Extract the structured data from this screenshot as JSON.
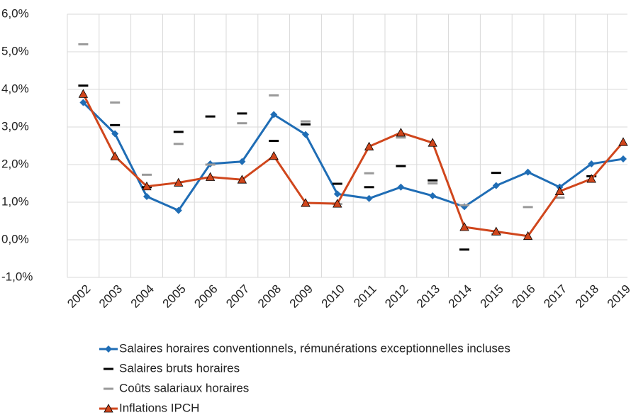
{
  "chart_data": {
    "type": "line",
    "categories": [
      "2002",
      "2003",
      "2004",
      "2005",
      "2006",
      "2007",
      "2008",
      "2009",
      "2010",
      "2011",
      "2012",
      "2013",
      "2014",
      "2015",
      "2016",
      "2017",
      "2018",
      "2019"
    ],
    "ylim": [
      -1.0,
      6.0
    ],
    "yticks": [
      {
        "value": -1.0,
        "label": "-1,0%"
      },
      {
        "value": 0.0,
        "label": "0,0%"
      },
      {
        "value": 1.0,
        "label": "1,0%"
      },
      {
        "value": 2.0,
        "label": "2,0%"
      },
      {
        "value": 3.0,
        "label": "3,0%"
      },
      {
        "value": 4.0,
        "label": "4,0%"
      },
      {
        "value": 5.0,
        "label": "5,0%"
      },
      {
        "value": 6.0,
        "label": "6,0%"
      }
    ],
    "grid": true,
    "series": [
      {
        "name": "Salaires horaires conventionnels, rémunérations exceptionnelles incluses",
        "color": "#1f6db5",
        "marker": "diamond",
        "line": true,
        "values": [
          3.65,
          2.82,
          1.15,
          0.78,
          2.02,
          2.08,
          3.33,
          2.8,
          1.22,
          1.1,
          1.4,
          1.17,
          0.88,
          1.44,
          1.8,
          1.4,
          2.02,
          2.15
        ]
      },
      {
        "name": "Salaires bruts horaires",
        "color": "#000000",
        "marker": "dash",
        "line": false,
        "values": [
          4.1,
          3.05,
          1.4,
          2.87,
          3.28,
          3.36,
          2.63,
          3.07,
          1.49,
          1.4,
          1.96,
          1.58,
          -0.26,
          1.78,
          null,
          null,
          1.69,
          null
        ]
      },
      {
        "name": "Coûts salariaux horaires",
        "color": "#999999",
        "marker": "dash",
        "line": false,
        "values": [
          5.2,
          3.65,
          1.73,
          2.55,
          2.0,
          3.1,
          3.84,
          3.15,
          0.95,
          1.77,
          2.72,
          1.5,
          0.92,
          0.15,
          0.87,
          1.12,
          null,
          null
        ]
      },
      {
        "name": "Inflations IPCH",
        "color": "#d0461c",
        "marker": "triangle",
        "line": true,
        "values": [
          3.88,
          2.22,
          1.42,
          1.52,
          1.67,
          1.6,
          2.23,
          0.98,
          0.96,
          2.48,
          2.85,
          2.58,
          0.34,
          0.22,
          0.1,
          1.29,
          1.62,
          2.6
        ]
      }
    ]
  }
}
